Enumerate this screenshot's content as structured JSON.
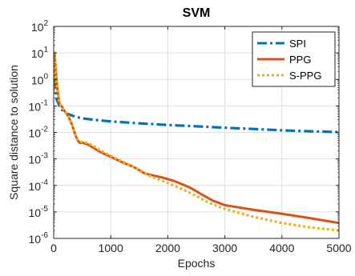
{
  "chart_data": {
    "type": "line",
    "title": "SVM",
    "xlabel": "Epochs",
    "ylabel": "Square distance to solution",
    "xlim": [
      0,
      5000
    ],
    "ylim_log10": [
      -6,
      2
    ],
    "y_scale": "log",
    "grid": true,
    "legend_placement": "top-right",
    "x_ticks": [
      0,
      1000,
      2000,
      3000,
      4000,
      5000
    ],
    "y_tick_exponents": [
      -6,
      -4,
      -2,
      0,
      2
    ],
    "series": [
      {
        "name": "SPI",
        "color": "#0072BD",
        "style": "dashdot",
        "points": [
          [
            0,
            1.0
          ],
          [
            20,
            0.5
          ],
          [
            50,
            0.18
          ],
          [
            100,
            0.1
          ],
          [
            150,
            0.07
          ],
          [
            200,
            0.055
          ],
          [
            300,
            0.045
          ],
          [
            400,
            0.038
          ],
          [
            500,
            0.034
          ],
          [
            700,
            0.03
          ],
          [
            1000,
            0.026
          ],
          [
            1500,
            0.022
          ],
          [
            2000,
            0.019
          ],
          [
            2500,
            0.017
          ],
          [
            3000,
            0.015
          ],
          [
            3500,
            0.0135
          ],
          [
            4000,
            0.012
          ],
          [
            4500,
            0.011
          ],
          [
            5000,
            0.0103
          ]
        ]
      },
      {
        "name": "PPG",
        "color": "#D95319",
        "style": "solid",
        "points": [
          [
            0,
            0.5
          ],
          [
            15,
            10
          ],
          [
            30,
            3
          ],
          [
            60,
            0.5
          ],
          [
            100,
            0.12
          ],
          [
            150,
            0.09
          ],
          [
            200,
            0.06
          ],
          [
            260,
            0.04
          ],
          [
            320,
            0.02
          ],
          [
            380,
            0.008
          ],
          [
            420,
            0.005
          ],
          [
            460,
            0.004
          ],
          [
            520,
            0.004
          ],
          [
            600,
            0.0035
          ],
          [
            700,
            0.0026
          ],
          [
            800,
            0.0019
          ],
          [
            1000,
            0.0012
          ],
          [
            1200,
            0.00075
          ],
          [
            1400,
            0.0005
          ],
          [
            1600,
            0.00028
          ],
          [
            1700,
            0.00025
          ],
          [
            1900,
            0.0002
          ],
          [
            2100,
            0.00015
          ],
          [
            2300,
            0.0001
          ],
          [
            2400,
            8e-05
          ],
          [
            2500,
            6e-05
          ],
          [
            2600,
            4.5e-05
          ],
          [
            2800,
            2.6e-05
          ],
          [
            3000,
            1.8e-05
          ],
          [
            3500,
            1.2e-05
          ],
          [
            4000,
            8.5e-06
          ],
          [
            4500,
            5.8e-06
          ],
          [
            5000,
            3.8e-06
          ]
        ]
      },
      {
        "name": "S-PPG",
        "color": "#EDB120",
        "style": "dotted",
        "points": [
          [
            0,
            0.3
          ],
          [
            15,
            12
          ],
          [
            30,
            4
          ],
          [
            60,
            0.6
          ],
          [
            100,
            0.13
          ],
          [
            150,
            0.09
          ],
          [
            200,
            0.06
          ],
          [
            260,
            0.04
          ],
          [
            320,
            0.02
          ],
          [
            380,
            0.008
          ],
          [
            420,
            0.0055
          ],
          [
            460,
            0.0045
          ],
          [
            520,
            0.0043
          ],
          [
            600,
            0.004
          ],
          [
            700,
            0.0031
          ],
          [
            800,
            0.0022
          ],
          [
            1000,
            0.0013
          ],
          [
            1200,
            0.0008
          ],
          [
            1400,
            0.0005
          ],
          [
            1600,
            0.0003
          ],
          [
            1700,
            0.00022
          ],
          [
            1900,
            0.00015
          ],
          [
            2100,
            0.0001
          ],
          [
            2300,
            6.5e-05
          ],
          [
            2500,
            4e-05
          ],
          [
            2700,
            2.3e-05
          ],
          [
            3000,
            1.3e-05
          ],
          [
            3500,
            6.5e-06
          ],
          [
            4000,
            3.8e-06
          ],
          [
            4500,
            2.6e-06
          ],
          [
            5000,
            2e-06
          ]
        ]
      }
    ]
  }
}
